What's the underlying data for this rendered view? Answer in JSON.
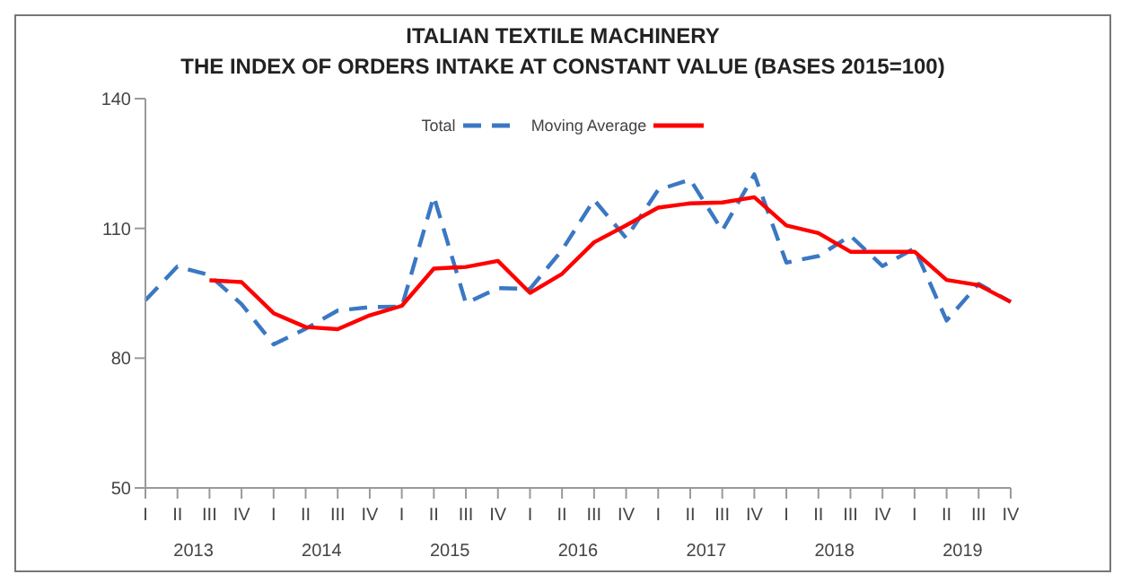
{
  "chart_data": {
    "type": "line",
    "title": "ITALIAN TEXTILE MACHINERY",
    "subtitle": "THE INDEX OF ORDERS INTAKE AT CONSTANT VALUE (BASES 2015=100)",
    "categories": [
      "I",
      "II",
      "III",
      "IV",
      "I",
      "II",
      "III",
      "IV",
      "I",
      "II",
      "III",
      "IV",
      "I",
      "II",
      "III",
      "IV",
      "I",
      "II",
      "III",
      "IV",
      "I",
      "II",
      "III",
      "IV",
      "I",
      "II",
      "III",
      "IV"
    ],
    "annotations": [
      "2013",
      "2014",
      "2015",
      "2016",
      "2017",
      "2018",
      "2019"
    ],
    "series": [
      {
        "name": "Total",
        "color": "#3a78c3",
        "line_style": "dashed",
        "values": [
          93.4,
          101.2,
          99.2,
          92.5,
          83.2,
          86.8,
          91,
          91.8,
          91.9,
          117.4,
          92.7,
          96.2,
          96,
          105,
          116.6,
          107.8,
          118.9,
          121.3,
          109.5,
          122.5,
          102.1,
          103.6,
          108.3,
          101.3,
          105.4,
          88.7,
          97.2,
          93
        ]
      },
      {
        "name": "Moving Average",
        "color": "#ff0000",
        "line_style": "solid",
        "values": [
          null,
          null,
          98,
          97.6,
          90.4,
          87.2,
          86.7,
          89.9,
          92.1,
          100.7,
          101.1,
          102.5,
          95.1,
          99.5,
          106.8,
          110.7,
          114.8,
          115.8,
          116,
          117.2,
          110.7,
          108.9,
          104.6,
          104.6,
          104.6,
          98.1,
          96.9,
          93
        ]
      }
    ],
    "ylim": [
      50,
      140
    ],
    "yticks": [
      50,
      80,
      110,
      140
    ],
    "legend": "top",
    "marker": "none"
  }
}
